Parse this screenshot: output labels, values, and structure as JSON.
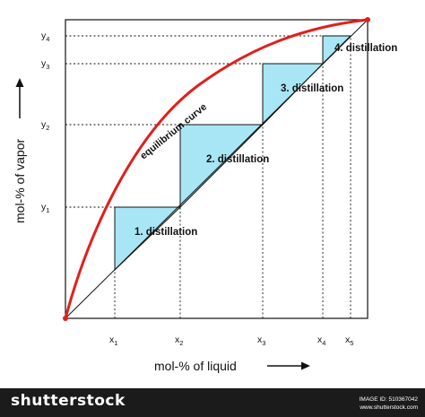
{
  "diagram": {
    "curve_label": "equilibrium curve",
    "x_axis_label": "mol-% of liquid",
    "y_axis_label": "mol-% of vapor",
    "x_ticks": [
      {
        "base": "x",
        "sub": "1"
      },
      {
        "base": "x",
        "sub": "2"
      },
      {
        "base": "x",
        "sub": "3"
      },
      {
        "base": "x",
        "sub": "4"
      },
      {
        "base": "x",
        "sub": "5"
      }
    ],
    "y_ticks": [
      {
        "base": "y",
        "sub": "1"
      },
      {
        "base": "y",
        "sub": "2"
      },
      {
        "base": "y",
        "sub": "3"
      },
      {
        "base": "y",
        "sub": "4"
      }
    ],
    "steps": [
      {
        "label": "1. distillation"
      },
      {
        "label": "2. distillation"
      },
      {
        "label": "3. distillation"
      },
      {
        "label": "4. distillation"
      }
    ],
    "colors": {
      "curve": "#e0201c",
      "step_fill": "#a8e6f5",
      "line": "#111111"
    }
  },
  "footer": {
    "brand": "shutterstock",
    "image_id": "IMAGE ID: 510367042",
    "site": "www.shutterstock.com"
  }
}
